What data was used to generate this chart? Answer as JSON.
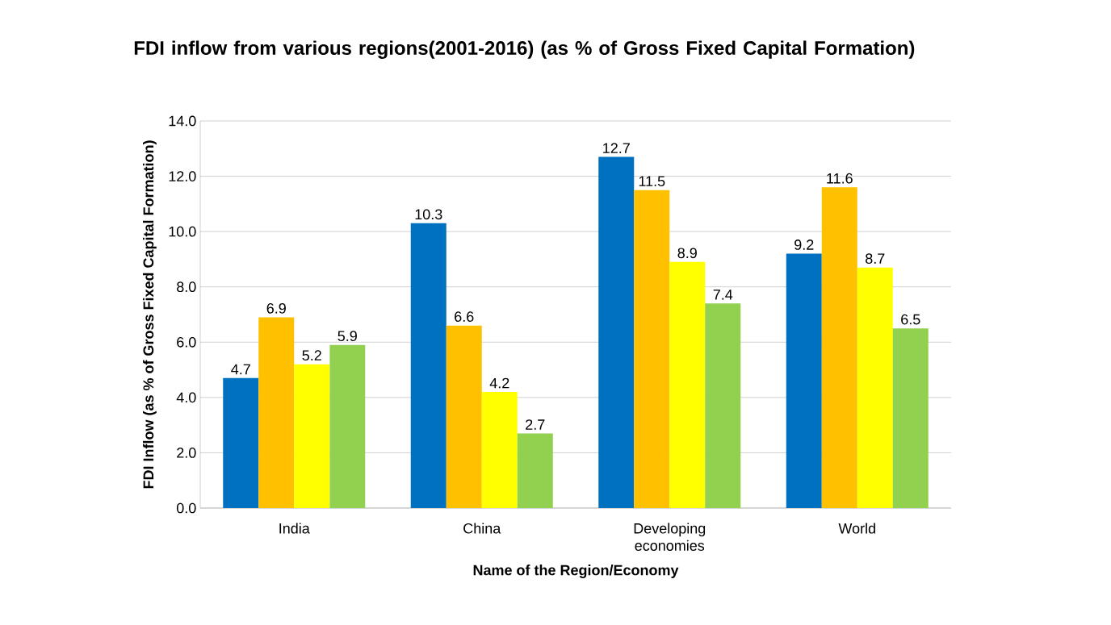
{
  "chart_data": {
    "type": "bar",
    "title": "FDI  inflow from various regions(2001-2016) (as % of Gross Fixed Capital Formation)",
    "xlabel": "Name of the Region/Economy",
    "ylabel": "FDI Inflow  (as % of Gross Fixed Capital  Formation)",
    "categories": [
      "India",
      "China",
      "Developing economies",
      "World"
    ],
    "series": [
      {
        "color": "#0070c0",
        "values": [
          4.7,
          10.3,
          12.7,
          9.2
        ]
      },
      {
        "color": "#ffc000",
        "values": [
          6.9,
          6.6,
          11.5,
          11.6
        ]
      },
      {
        "color": "#ffff00",
        "values": [
          5.2,
          4.2,
          8.9,
          8.7
        ]
      },
      {
        "color": "#92d050",
        "values": [
          5.9,
          2.7,
          7.4,
          6.5
        ]
      }
    ],
    "ylim": [
      0,
      14
    ],
    "yticks": [
      {
        "value": 0,
        "label": "0.0"
      },
      {
        "value": 2,
        "label": "2.0"
      },
      {
        "value": 4,
        "label": "4.0"
      },
      {
        "value": 6,
        "label": "6.0"
      },
      {
        "value": 8,
        "label": "8.0"
      },
      {
        "value": 10,
        "label": "10.0"
      },
      {
        "value": 12,
        "label": "12.0"
      },
      {
        "value": 14,
        "label": "14.0"
      }
    ],
    "grid": "y",
    "data_labels": true
  }
}
